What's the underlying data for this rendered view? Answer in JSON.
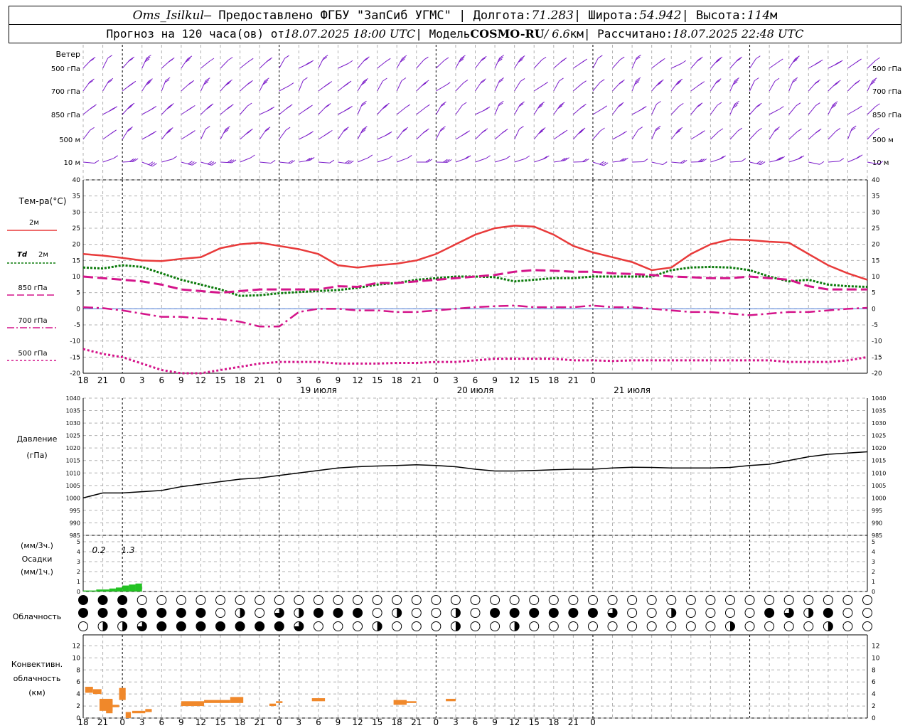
{
  "header": {
    "station": "Oms_Isilkul",
    "provided_by": " – Предоставлено ФГБУ \"ЗапСиб УГМС\" | Долгота: ",
    "longitude": "71.283",
    "lat_label": " | Широта: ",
    "latitude": "54.942",
    "alt_label": " | Высота: ",
    "altitude": "114",
    "alt_unit": "м",
    "forecast_prefix": "Прогноз на 120 часа(ов) от ",
    "forecast_start": "18.07.2025 18:00 UTC",
    "model_label": " | Модель ",
    "model": "COSMO-RU",
    "model_sep": " / 6.6",
    "model_unit": "км",
    "calc_label": " | Рассчитано: ",
    "calc_time": "18.07.2025 22:48 UTC"
  },
  "labels": {
    "wind_title": "Ветер",
    "wind_levels": [
      "500 гПа",
      "700 гПа",
      "850 гПа",
      "500 м",
      "10  м"
    ],
    "temp_title": "Тем-ра(°C)",
    "t2m": "2м",
    "td_prefix": "Td",
    "td_suffix": "2м",
    "t850": "850 гПа",
    "t700": "700 гПа",
    "t500": "500 гПа",
    "pressure_title_1": "Давление",
    "pressure_title_2": "(гПа)",
    "precip_title_1": "(мм/3ч.)",
    "precip_title_2": "Осадки",
    "precip_title_3": "(мм/1ч.)",
    "precip_totals": [
      "0.2",
      "1.3"
    ],
    "cloud_title": "Облачность",
    "conv_title_1": "Конвективн.",
    "conv_title_2": "облачность",
    "conv_title_3": "(км)"
  },
  "colors": {
    "t2m": "#e83a3a",
    "td2m": "#0a7a0a",
    "t850": "#d4148a",
    "t700": "#d4148a",
    "t500": "#d4148a",
    "wind": "#7a1bc9",
    "pressure": "#000000",
    "precip": "#22c222",
    "conv": "#f0882a",
    "zero_line": "#4a7bd8"
  },
  "chart_data": [
    {
      "type": "wind-barbs",
      "levels": [
        "500 гПа",
        "700 гПа",
        "850 гПа",
        "500 м",
        "10  м"
      ],
      "x_hours": [
        0,
        120
      ],
      "time_ticks": [
        "18",
        "21",
        "0",
        "3",
        "6",
        "9",
        "12",
        "15",
        "18",
        "21",
        "0",
        "3",
        "6",
        "9",
        "12",
        "15",
        "18",
        "21",
        "0",
        "3",
        "6",
        "9",
        "12",
        "15",
        "18",
        "21",
        "0"
      ]
    },
    {
      "type": "line",
      "title": "Тем-ра(°C)",
      "x_unit": "hours since 18.07.2025 18:00 UTC",
      "ylim": [
        -20,
        40
      ],
      "yticks": [
        -20,
        -15,
        -10,
        -5,
        0,
        5,
        10,
        15,
        20,
        25,
        30,
        35,
        40
      ],
      "x_ticks": [
        "18",
        "21",
        "0",
        "3",
        "6",
        "9",
        "12",
        "15",
        "18",
        "21",
        "0",
        "3",
        "6",
        "9",
        "12",
        "15",
        "18",
        "21",
        "0",
        "3",
        "6",
        "9",
        "12",
        "15",
        "18",
        "21",
        "0"
      ],
      "day_labels": [
        "19 июля",
        "20 июля",
        "21 июля"
      ],
      "series": [
        {
          "name": "2м",
          "x": [
            0,
            3,
            6,
            9,
            12,
            15,
            18,
            21,
            24,
            27,
            30,
            33,
            36,
            39,
            42,
            45,
            48,
            51,
            54,
            57,
            60,
            63,
            66,
            69,
            72,
            75,
            78,
            81,
            84,
            87,
            90,
            93,
            96,
            99,
            102,
            105,
            108,
            111,
            114,
            117,
            120
          ],
          "values": [
            17,
            16.5,
            15.8,
            15,
            14.8,
            15.5,
            16,
            18.8,
            20,
            20.5,
            19.5,
            18.5,
            17,
            13.5,
            12.8,
            13.5,
            14,
            15,
            17,
            20,
            23,
            25,
            25.8,
            25.5,
            23,
            19.5,
            17.5,
            16,
            14.5,
            12,
            12.8,
            17,
            20,
            21.5,
            21.3,
            20.8,
            20.5,
            17,
            13.5,
            11,
            9
          ]
        },
        {
          "name": "Td 2м",
          "x": [
            0,
            3,
            6,
            9,
            12,
            15,
            18,
            21,
            24,
            27,
            30,
            33,
            36,
            39,
            42,
            45,
            48,
            51,
            54,
            57,
            60,
            63,
            66,
            69,
            72,
            75,
            78,
            81,
            84,
            87,
            90,
            93,
            96,
            99,
            102,
            105,
            108,
            111,
            114,
            117,
            120
          ],
          "values": [
            12.8,
            12.5,
            13.5,
            13,
            11,
            9,
            7.5,
            6,
            4,
            4.2,
            4.8,
            5.2,
            5.5,
            5.8,
            6.5,
            7.5,
            8,
            9,
            9.5,
            10,
            10,
            9.8,
            8.5,
            9,
            9.5,
            9.5,
            10,
            10,
            10,
            10,
            12,
            12.8,
            13,
            12.8,
            12,
            10,
            8.5,
            9,
            7.5,
            7,
            6.8
          ]
        },
        {
          "name": "850 гПа",
          "x": [
            0,
            3,
            6,
            9,
            12,
            15,
            18,
            21,
            24,
            27,
            30,
            33,
            36,
            39,
            42,
            45,
            48,
            51,
            54,
            57,
            60,
            63,
            66,
            69,
            72,
            75,
            78,
            81,
            84,
            87,
            90,
            93,
            96,
            99,
            102,
            105,
            108,
            111,
            114,
            117,
            120
          ],
          "values": [
            10,
            9.5,
            9,
            8.5,
            7.5,
            6,
            5.5,
            5,
            5.5,
            6,
            6,
            6,
            6,
            7,
            6.8,
            8,
            8,
            8.5,
            9,
            9.5,
            10,
            10.5,
            11.5,
            12,
            11.8,
            11.5,
            11.5,
            11,
            10.8,
            10.5,
            10,
            9.8,
            9.5,
            9.5,
            10,
            9.5,
            9,
            7,
            6,
            6,
            6
          ]
        },
        {
          "name": "700 гПа",
          "x": [
            0,
            3,
            6,
            9,
            12,
            15,
            18,
            21,
            24,
            27,
            30,
            33,
            36,
            39,
            42,
            45,
            48,
            51,
            54,
            57,
            60,
            63,
            66,
            69,
            72,
            75,
            78,
            81,
            84,
            87,
            90,
            93,
            96,
            99,
            102,
            105,
            108,
            111,
            114,
            117,
            120
          ],
          "values": [
            0.5,
            0.2,
            -0.5,
            -1.5,
            -2.5,
            -2.5,
            -3,
            -3.2,
            -4,
            -5.5,
            -5.5,
            -1,
            0,
            0,
            -0.5,
            -0.5,
            -1,
            -1,
            -0.5,
            0,
            0.5,
            0.8,
            1,
            0.5,
            0.5,
            0.5,
            1,
            0.5,
            0.5,
            0,
            -0.5,
            -1,
            -1,
            -1.5,
            -2,
            -1.5,
            -1,
            -1,
            -0.5,
            0,
            0.3
          ]
        },
        {
          "name": "500 гПа",
          "x": [
            0,
            3,
            6,
            9,
            12,
            15,
            18,
            21,
            24,
            27,
            30,
            33,
            36,
            39,
            42,
            45,
            48,
            51,
            54,
            57,
            60,
            63,
            66,
            69,
            72,
            75,
            78,
            81,
            84,
            87,
            90,
            93,
            96,
            99,
            102,
            105,
            108,
            111,
            114,
            117,
            120
          ],
          "values": [
            -12.5,
            -14,
            -15,
            -17,
            -19,
            -21,
            -21,
            -19,
            -18,
            -17,
            -16.5,
            -16.5,
            -16.5,
            -17,
            -17,
            -17,
            -16.8,
            -16.8,
            -16.5,
            -16.5,
            -16,
            -15.5,
            -15.5,
            -15.5,
            -15.5,
            -16,
            -16,
            -16.2,
            -16,
            -16,
            -16,
            -16,
            -16,
            -16,
            -16,
            -16,
            -16.5,
            -16.5,
            -16.5,
            -16,
            -15
          ]
        }
      ]
    },
    {
      "type": "line",
      "title": "Давление (гПа)",
      "ylim": [
        985,
        1040
      ],
      "yticks": [
        985,
        990,
        995,
        1000,
        1005,
        1010,
        1015,
        1020,
        1025,
        1030,
        1035,
        1040
      ],
      "series": [
        {
          "name": "Давление",
          "x": [
            0,
            3,
            6,
            9,
            12,
            15,
            18,
            21,
            24,
            27,
            30,
            33,
            36,
            39,
            42,
            45,
            48,
            51,
            54,
            57,
            60,
            63,
            66,
            69,
            72,
            75,
            78,
            81,
            84,
            87,
            90,
            93,
            96,
            99,
            102,
            105,
            108,
            111,
            114,
            117,
            120
          ],
          "values": [
            1000,
            1002,
            1002,
            1002.5,
            1003,
            1004.5,
            1005.5,
            1006.5,
            1007.5,
            1008,
            1009,
            1010,
            1011,
            1012,
            1012.5,
            1012.8,
            1013,
            1013.3,
            1013,
            1012.5,
            1011.5,
            1010.8,
            1010.8,
            1011,
            1011.3,
            1011.5,
            1011.5,
            1012,
            1012.3,
            1012.2,
            1012,
            1012,
            1012,
            1012.2,
            1013,
            1013.5,
            1015,
            1016.5,
            1017.5,
            1018,
            1018.5
          ]
        }
      ]
    },
    {
      "type": "bar",
      "title": "Осадки",
      "ylim": [
        0,
        5
      ],
      "yticks": [
        0,
        1,
        2,
        3,
        4,
        5
      ],
      "x_hours": [
        0,
        1,
        2,
        3,
        4,
        5,
        6,
        7,
        8
      ],
      "values": [
        0.1,
        0.1,
        0.2,
        0.2,
        0.3,
        0.4,
        0.6,
        0.7,
        0.8
      ],
      "totals_3h": [
        "0.2",
        "1.3"
      ]
    },
    {
      "type": "cloud-cover",
      "title": "Облачность",
      "x_hours": [
        0,
        3,
        6,
        9,
        12,
        15,
        18,
        21,
        24,
        27,
        30,
        33,
        36,
        39,
        42,
        45,
        48,
        51,
        54,
        57,
        60,
        63,
        66,
        69,
        72,
        75,
        78,
        81,
        84,
        87,
        90,
        93,
        96,
        99,
        102,
        105,
        108,
        111,
        114,
        117,
        120
      ],
      "rows_octas": [
        [
          8,
          8,
          8,
          0,
          0,
          0,
          0,
          0,
          0,
          0,
          0,
          0,
          0,
          0,
          0,
          0,
          0,
          0,
          0,
          0,
          0,
          0,
          0,
          0,
          0,
          0,
          0,
          0,
          0,
          0,
          0,
          0,
          0,
          0,
          0,
          0,
          0,
          0,
          0,
          0,
          0
        ],
        [
          8,
          8,
          8,
          8,
          8,
          8,
          8,
          0,
          4,
          0,
          6,
          4,
          8,
          8,
          8,
          0,
          4,
          0,
          0,
          4,
          0,
          8,
          8,
          8,
          8,
          8,
          8,
          6,
          0,
          0,
          4,
          0,
          0,
          0,
          0,
          8,
          6,
          4,
          8,
          0,
          0
        ],
        [
          0,
          4,
          4,
          6,
          8,
          8,
          8,
          8,
          8,
          8,
          8,
          6,
          0,
          0,
          0,
          4,
          0,
          0,
          0,
          4,
          0,
          0,
          4,
          0,
          0,
          0,
          0,
          0,
          0,
          0,
          0,
          0,
          0,
          4,
          0,
          0,
          0,
          0,
          4,
          0,
          0
        ]
      ]
    },
    {
      "type": "bar",
      "title": "Конвективн. облачность (км)",
      "ylim": [
        0,
        13
      ],
      "yticks": [
        0,
        2,
        4,
        6,
        8,
        10,
        12
      ],
      "segments": [
        {
          "from_h": 0.3,
          "to_h": 1.5,
          "base": 4.2,
          "top": 5.2
        },
        {
          "from_h": 1.5,
          "to_h": 2.8,
          "base": 4.0,
          "top": 4.8
        },
        {
          "from_h": 2.5,
          "to_h": 4.5,
          "base": 1.2,
          "top": 3.2
        },
        {
          "from_h": 3.5,
          "to_h": 4.5,
          "base": 0.8,
          "top": 3.0
        },
        {
          "from_h": 4.5,
          "to_h": 5.5,
          "base": 1.8,
          "top": 2.2
        },
        {
          "from_h": 5.5,
          "to_h": 6.5,
          "base": 3.0,
          "top": 5.0
        },
        {
          "from_h": 6.5,
          "to_h": 7.3,
          "base": 0.0,
          "top": 1.0
        },
        {
          "from_h": 7.5,
          "to_h": 9.5,
          "base": 0.8,
          "top": 1.2
        },
        {
          "from_h": 9.5,
          "to_h": 10.5,
          "base": 1.0,
          "top": 1.5
        },
        {
          "from_h": 15.0,
          "to_h": 18.5,
          "base": 2.0,
          "top": 2.8
        },
        {
          "from_h": 18.5,
          "to_h": 22.5,
          "base": 2.5,
          "top": 3.0
        },
        {
          "from_h": 22.5,
          "to_h": 24.5,
          "base": 2.5,
          "top": 3.5
        },
        {
          "from_h": 28.5,
          "to_h": 29.5,
          "base": 2.0,
          "top": 2.4
        },
        {
          "from_h": 29.5,
          "to_h": 30.5,
          "base": 2.5,
          "top": 2.8
        },
        {
          "from_h": 35.0,
          "to_h": 37.0,
          "base": 2.8,
          "top": 3.3
        },
        {
          "from_h": 47.5,
          "to_h": 49.5,
          "base": 2.2,
          "top": 3.0
        },
        {
          "from_h": 49.5,
          "to_h": 51.0,
          "base": 2.5,
          "top": 2.8
        },
        {
          "from_h": 55.5,
          "to_h": 57.0,
          "base": 2.8,
          "top": 3.2
        }
      ]
    }
  ]
}
